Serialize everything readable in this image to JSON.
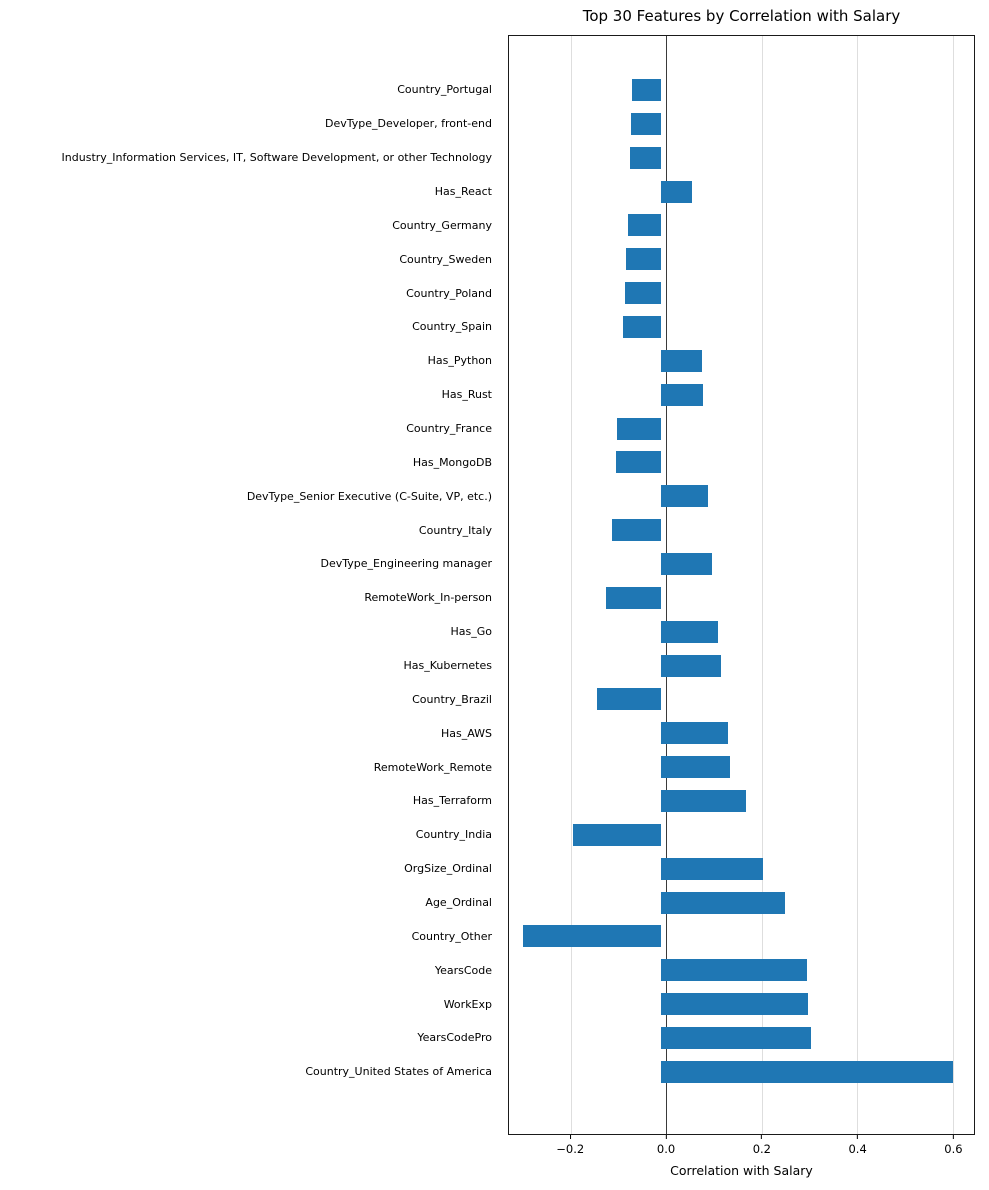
{
  "chart_data": {
    "type": "bar",
    "orientation": "horizontal",
    "title": "Top 30 Features by Correlation with Salary",
    "xlabel": "Correlation with Salary",
    "bar_color": "#1f77b4",
    "grid": "vertical",
    "legend": "none",
    "xlim": [
      -0.33,
      0.645
    ],
    "xticks": [
      -0.2,
      0.0,
      0.2,
      0.4,
      0.6
    ],
    "xtick_labels": [
      "−0.2",
      "0.0",
      "0.2",
      "0.4",
      "0.6"
    ],
    "categories": [
      "Country_Portugal",
      "DevType_Developer, front-end",
      "Industry_Information Services, IT, Software Development, or other Technology",
      "Has_React",
      "Country_Germany",
      "Country_Sweden",
      "Country_Poland",
      "Country_Spain",
      "Has_Python",
      "Has_Rust",
      "Country_France",
      "Has_MongoDB",
      "DevType_Senior Executive (C-Suite, VP, etc.)",
      "Country_Italy",
      "DevType_Engineering manager",
      "RemoteWork_In-person",
      "Has_Go",
      "Has_Kubernetes",
      "Country_Brazil",
      "Has_AWS",
      "RemoteWork_Remote",
      "Has_Terraform",
      "Country_India",
      "OrgSize_Ordinal",
      "Age_Ordinal",
      "Country_Other",
      "YearsCode",
      "WorkExp",
      "YearsCodePro",
      "Country_United States of America"
    ],
    "values": [
      -0.06,
      -0.061,
      -0.063,
      0.064,
      -0.067,
      -0.072,
      -0.074,
      -0.078,
      0.085,
      0.086,
      -0.09,
      -0.092,
      0.096,
      -0.1,
      0.105,
      -0.113,
      0.118,
      0.124,
      -0.131,
      0.138,
      0.142,
      0.175,
      -0.18,
      0.21,
      0.255,
      -0.283,
      0.3,
      0.303,
      0.308,
      0.6
    ]
  }
}
